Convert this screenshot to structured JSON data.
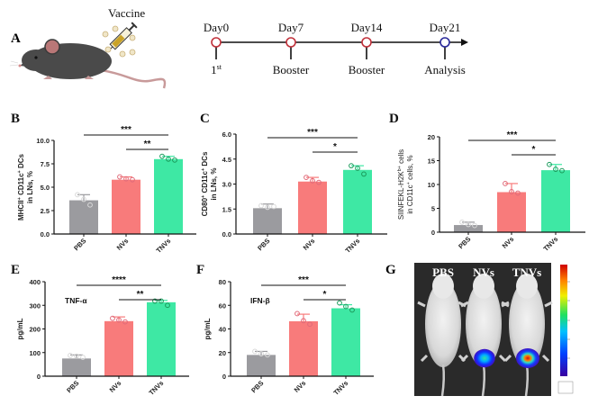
{
  "panel_labels": {
    "A": "A",
    "B": "B",
    "C": "C",
    "D": "D",
    "E": "E",
    "F": "F",
    "G": "G"
  },
  "schematic": {
    "vaccine_label": "Vaccine",
    "timeline": [
      {
        "day": "Day0",
        "event": "1",
        "event_sup": "st",
        "color": "#c0303a"
      },
      {
        "day": "Day7",
        "event": "Booster",
        "event_sup": "",
        "color": "#c0303a"
      },
      {
        "day": "Day14",
        "event": "Booster",
        "event_sup": "",
        "color": "#c0303a"
      },
      {
        "day": "Day21",
        "event": "Analysis",
        "event_sup": "",
        "color": "#2a2a9a"
      }
    ]
  },
  "colors": {
    "PBS": "#9b9b9f",
    "NVs": "#f87b7b",
    "TNVs": "#3ee8a4",
    "PBS_pt": "#d9d9d9",
    "NVs_pt": "#e06a7a",
    "TNVs_pt": "#1a9a5a"
  },
  "chart_data": [
    {
      "id": "B",
      "type": "bar",
      "categories": [
        "PBS",
        "NVs",
        "TNVs"
      ],
      "values": [
        3.6,
        5.8,
        8.0
      ],
      "errors": [
        0.6,
        0.3,
        0.3
      ],
      "points": [
        [
          4.2,
          3.7,
          3.1
        ],
        [
          6.1,
          5.9,
          5.8
        ],
        [
          8.3,
          8.0,
          7.9
        ]
      ],
      "ylabel_line1": "MHCII",
      "ylabel_sup1": "+",
      "ylabel_mid": " CD11c",
      "ylabel_sup2": "+",
      "ylabel_end": " DCs",
      "ylabel_line2": "in LNs, %",
      "ylim": [
        0,
        10
      ],
      "yticks": [
        "0.0",
        "2.5",
        "5.0",
        "7.5",
        "10.0"
      ],
      "ytick_values": [
        0,
        2.5,
        5,
        7.5,
        10
      ],
      "significance": [
        {
          "from": "PBS",
          "to": "TNVs",
          "label": "***"
        },
        {
          "from": "NVs",
          "to": "TNVs",
          "label": "**"
        }
      ],
      "annotation": ""
    },
    {
      "id": "C",
      "type": "bar",
      "categories": [
        "PBS",
        "NVs",
        "TNVs"
      ],
      "values": [
        1.55,
        3.15,
        3.85
      ],
      "errors": [
        0.25,
        0.25,
        0.25
      ],
      "points": [
        [
          1.7,
          1.6,
          1.65
        ],
        [
          3.4,
          3.2,
          3.1
        ],
        [
          4.1,
          3.95,
          3.6
        ]
      ],
      "ylabel_line1": "CD80",
      "ylabel_sup1": "+",
      "ylabel_mid": " CD11c",
      "ylabel_sup2": "+",
      "ylabel_end": " DCs",
      "ylabel_line2": "in LNs, %",
      "ylim": [
        0,
        6
      ],
      "yticks": [
        "0.0",
        "1.5",
        "3.0",
        "4.5",
        "6.0"
      ],
      "ytick_values": [
        0,
        1.5,
        3,
        4.5,
        6
      ],
      "significance": [
        {
          "from": "PBS",
          "to": "TNVs",
          "label": "***"
        },
        {
          "from": "NVs",
          "to": "TNVs",
          "label": "*"
        }
      ],
      "annotation": ""
    },
    {
      "id": "D",
      "type": "bar",
      "categories": [
        "PBS",
        "NVs",
        "TNVs"
      ],
      "values": [
        1.5,
        8.4,
        13.0
      ],
      "errors": [
        0.6,
        1.8,
        1.2
      ],
      "points": [
        [
          2.1,
          1.6,
          1.4
        ],
        [
          10.2,
          8.5,
          8.2
        ],
        [
          14.2,
          13.2,
          12.9
        ]
      ],
      "ylabel_line1": "SIINFEKL-H2K",
      "ylabel_sup1": "b+",
      "ylabel_mid": " cells",
      "ylabel_sup2": "",
      "ylabel_end": "",
      "ylabel_line2": "in CD11c",
      "ylabel_line2_sup": "+",
      "ylabel_line2_end": " cells, %",
      "ylim": [
        0,
        20
      ],
      "yticks": [
        "0",
        "5",
        "10",
        "15",
        "20"
      ],
      "ytick_values": [
        0,
        5,
        10,
        15,
        20
      ],
      "significance": [
        {
          "from": "PBS",
          "to": "TNVs",
          "label": "***"
        },
        {
          "from": "NVs",
          "to": "TNVs",
          "label": "*"
        }
      ],
      "annotation": ""
    },
    {
      "id": "E",
      "type": "bar",
      "categories": [
        "PBS",
        "NVs",
        "TNVs"
      ],
      "values": [
        75,
        233,
        313
      ],
      "errors": [
        15,
        18,
        8
      ],
      "points": [
        [
          88,
          85,
          80
        ],
        [
          245,
          238,
          230
        ],
        [
          318,
          318,
          300
        ]
      ],
      "ylabel_line1": "pg/mL",
      "ylabel_sup1": "",
      "ylabel_mid": "",
      "ylabel_sup2": "",
      "ylabel_end": "",
      "ylabel_line2": "",
      "ylim": [
        0,
        400
      ],
      "yticks": [
        "0",
        "100",
        "200",
        "300",
        "400"
      ],
      "ytick_values": [
        0,
        100,
        200,
        300,
        400
      ],
      "significance": [
        {
          "from": "PBS",
          "to": "TNVs",
          "label": "****"
        },
        {
          "from": "NVs",
          "to": "TNVs",
          "label": "**"
        }
      ],
      "annotation": "TNF-α"
    },
    {
      "id": "F",
      "type": "bar",
      "categories": [
        "PBS",
        "NVs",
        "TNVs"
      ],
      "values": [
        18,
        46.5,
        57.5
      ],
      "errors": [
        3,
        6,
        3
      ],
      "points": [
        [
          21,
          19,
          18
        ],
        [
          53,
          47,
          44
        ],
        [
          62,
          59,
          56
        ]
      ],
      "ylabel_line1": "pg/mL",
      "ylabel_sup1": "",
      "ylabel_mid": "",
      "ylabel_sup2": "",
      "ylabel_end": "",
      "ylabel_line2": "",
      "ylim": [
        0,
        80
      ],
      "yticks": [
        "0",
        "20",
        "40",
        "60",
        "80"
      ],
      "ytick_values": [
        0,
        20,
        40,
        60,
        80
      ],
      "significance": [
        {
          "from": "PBS",
          "to": "TNVs",
          "label": "***"
        },
        {
          "from": "NVs",
          "to": "TNVs",
          "label": "*"
        }
      ],
      "annotation": "IFN-β"
    }
  ],
  "imaging": {
    "labels": [
      "PBS",
      "NVs",
      "TNVs"
    ],
    "signal": [
      0,
      0.6,
      1.0
    ]
  }
}
